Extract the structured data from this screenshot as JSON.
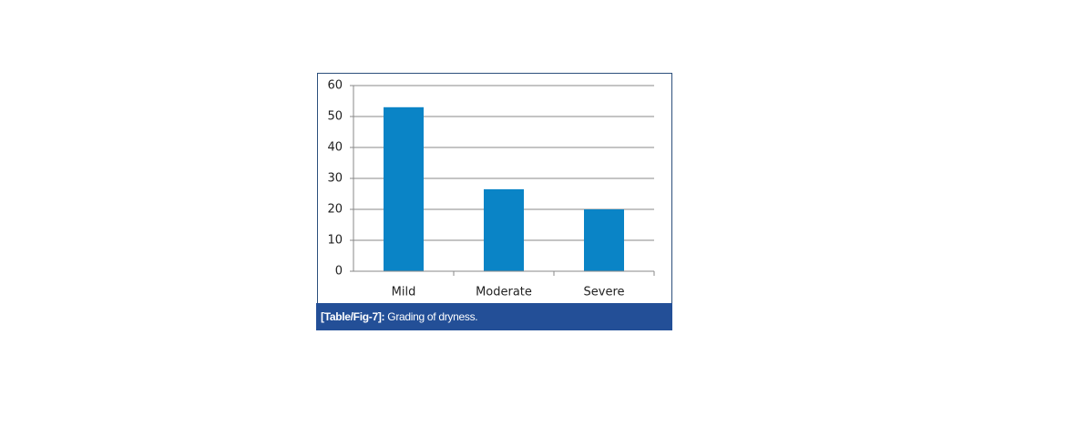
{
  "chart_data": {
    "type": "bar",
    "categories": [
      "Mild",
      "Moderate",
      "Severe"
    ],
    "values": [
      53,
      26.5,
      20
    ],
    "color": "#0a84c6",
    "ylim": [
      0,
      60
    ],
    "yticks": [
      0,
      10,
      20,
      30,
      40,
      50,
      60
    ],
    "grid": true,
    "caption": {
      "label": "[Table/Fig-7]:",
      "text": "Grading of dryness."
    }
  }
}
